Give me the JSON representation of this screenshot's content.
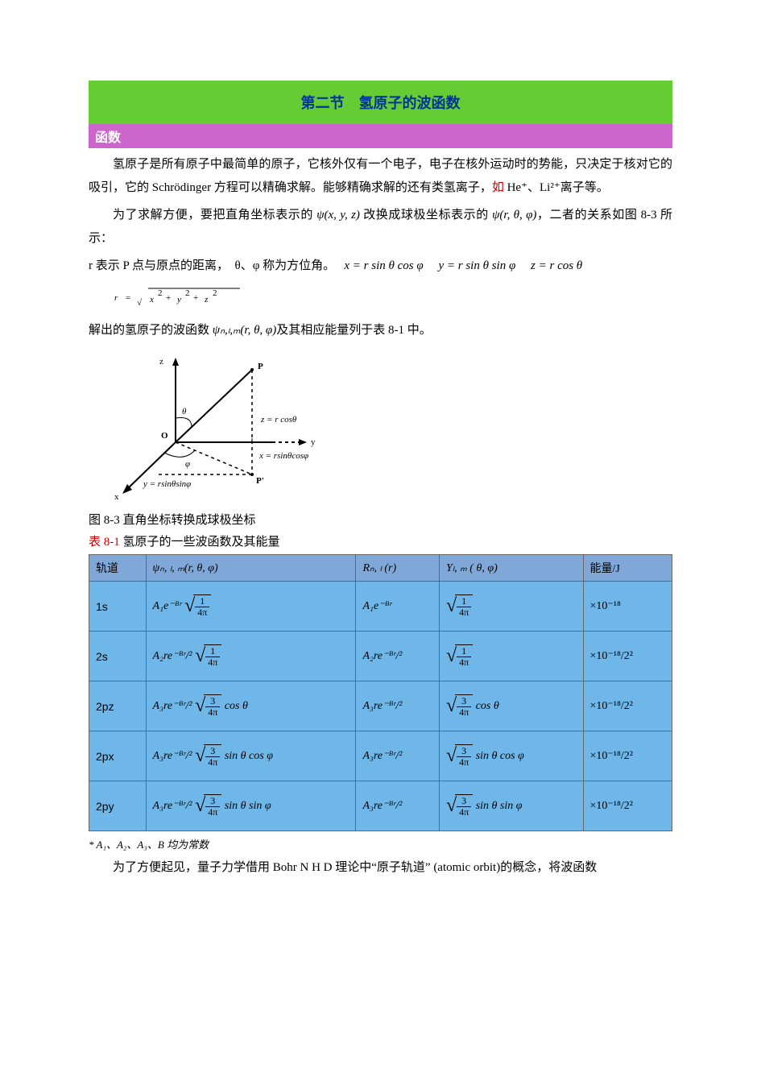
{
  "section_title": "第二节　氢原子的波函数",
  "subsection_title": "函数",
  "para1_a": "氢原子是所有原子中最简单的原子，它核外仅有一个电子，电子在核外运动时的势能，只决定于核对它的吸引，它的 Schrödinger 方程可以精确求解。能够精确求解的还有类氢离子，",
  "para1_ru": "如",
  "para1_b": " He⁺、Li²⁺离子等。",
  "para2_a": "为了求解方便，要把直角坐标表示的 ",
  "psi_xyz": "ψ(x, y, z)",
  "para2_b": " 改换成球极坐标表示的 ",
  "psi_rtp": "ψ(r, θ, φ)",
  "para2_c": "，二者的关系如图 8-3 所示：",
  "para3_a": "r 表示 P 点与原点的距离，　θ、φ 称为方位角。　",
  "coord_x": "x = r sin θ   cos φ",
  "coord_y": "y = r sin θ   sin φ",
  "coord_z": "z = r cos θ",
  "r_formula": "r = √(x² + y² + z²)",
  "para4_a": "解出的氢原子的波函数 ",
  "psi_nlm": "ψₙ,ₗ,ₘ(r, θ, φ)",
  "para4_b": "及其相应能量列于表 8-1 中。",
  "diagram": {
    "z_label": "z",
    "p_label": "P",
    "theta_label": "θ",
    "o_label": "O",
    "z_formula": "z = r cosθ",
    "x_formula": "x = rsinθcosφ",
    "y_formula": "y = rsinθsinφ",
    "x_axis": "x",
    "y_axis": "y",
    "phi_label": "φ",
    "pp_label": "P'"
  },
  "fig_caption": "图 8-3  直角坐标转换成球极坐标",
  "table_caption_a": "表 8-1",
  "table_caption_b": "  氢原子的一些波函数及其能量",
  "table": {
    "headers": [
      "轨道",
      "ψₙ, ₗ, ₘ(r, θ,  φ)",
      "Rₙ, ₗ (r)",
      "Yₗ, ₘ ( θ,  φ)",
      "能量/J"
    ],
    "rows": [
      {
        "orbital": "1s",
        "psi_pre": "A₁e⁻ᴮʳ",
        "frac_num": "1",
        "frac_den": "4π",
        "psi_post": "",
        "R": "A₁e⁻ᴮʳ",
        "Y_frac_num": "1",
        "Y_frac_den": "4π",
        "Y_post": "",
        "E": "×10⁻¹⁸"
      },
      {
        "orbital": "2s",
        "psi_pre": "A₂re⁻ᴮʳ/²",
        "frac_num": "1",
        "frac_den": "4π",
        "psi_post": "",
        "R": "A₂re⁻ᴮʳ/²",
        "Y_frac_num": "1",
        "Y_frac_den": "4π",
        "Y_post": "",
        "E": "×10⁻¹⁸/2²"
      },
      {
        "orbital": "2pz",
        "psi_pre": "A₃re⁻ᴮʳ/²",
        "frac_num": "3",
        "frac_den": "4π",
        "psi_post": " cos θ",
        "R": "A₃re⁻ᴮʳ/²",
        "Y_frac_num": "3",
        "Y_frac_den": "4π",
        "Y_post": " cos θ",
        "E": "×10⁻¹⁸/2²"
      },
      {
        "orbital": "2px",
        "psi_pre": "A₃re⁻ᴮʳ/²",
        "frac_num": "3",
        "frac_den": "4π",
        "psi_post": " sin θ cos φ",
        "R": "A₃re⁻ᴮʳ/²",
        "Y_frac_num": "3",
        "Y_frac_den": "4π",
        "Y_post": " sin θ cos φ",
        "E": "×10⁻¹⁸/2²"
      },
      {
        "orbital": "2py",
        "psi_pre": "A₃re⁻ᴮʳ/²",
        "frac_num": "3",
        "frac_den": "4π",
        "psi_post": " sin θ sin φ",
        "R": "A₃re⁻ᴮʳ/²",
        "Y_frac_num": "3",
        "Y_frac_den": "4π",
        "Y_post": " sin θ sin φ",
        "E": "×10⁻¹⁸/2²"
      }
    ]
  },
  "tnote": "*  A₁、A₂、A₃、B 均为常数",
  "para5": "为了方便起见，量子力学借用 Bohr N H D 理论中“原子轨道”  (atomic orbit)的概念，将波函数",
  "colors": {
    "section_bg": "#66cc33",
    "section_fg": "#003399",
    "sub_bg": "#cc66cc",
    "sub_fg": "#ffffff",
    "th_bg": "#7fa8d9",
    "td_bg": "#6fb7e8",
    "red": "#cc0000"
  }
}
